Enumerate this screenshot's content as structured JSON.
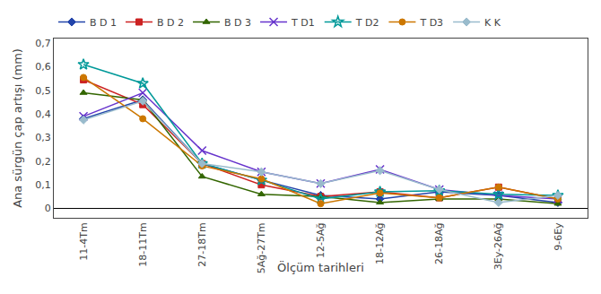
{
  "chart_data": {
    "type": "line",
    "xlabel": "Ölçüm tarihleri",
    "ylabel": "Ana sürgün çap artışı (mm)",
    "categories": [
      "11-4Tm",
      "18-11Tm",
      "27-18Tm",
      "5Ağ-27Tm",
      "12-5Ağ",
      "18-12Ağ",
      "26-18Ağ",
      "3Ey-26Ağ",
      "9-6Ey"
    ],
    "series": [
      {
        "name": "B D 1",
        "color": "#2244aa",
        "marker": "diamond",
        "values": [
          0.38,
          0.46,
          0.19,
          0.12,
          0.055,
          0.04,
          0.07,
          0.055,
          0.025
        ]
      },
      {
        "name": "B D 2",
        "color": "#cc2222",
        "marker": "square",
        "values": [
          0.545,
          0.44,
          0.19,
          0.1,
          0.05,
          0.07,
          0.045,
          0.09,
          0.04
        ]
      },
      {
        "name": "B D 3",
        "color": "#336600",
        "marker": "triangle-up",
        "values": [
          0.49,
          0.46,
          0.135,
          0.06,
          0.05,
          0.025,
          0.04,
          0.04,
          0.02
        ]
      },
      {
        "name": "T D1",
        "color": "#6633cc",
        "marker": "x",
        "values": [
          0.39,
          0.49,
          0.245,
          0.155,
          0.105,
          0.165,
          0.08,
          0.055,
          0.04
        ]
      },
      {
        "name": "T D2",
        "color": "#009999",
        "marker": "star",
        "values": [
          0.61,
          0.53,
          0.19,
          0.12,
          0.04,
          0.07,
          0.075,
          0.06,
          0.055
        ]
      },
      {
        "name": "T D3",
        "color": "#cc7700",
        "marker": "circle",
        "values": [
          0.555,
          0.38,
          0.18,
          0.125,
          0.02,
          0.065,
          0.045,
          0.09,
          0.04
        ]
      },
      {
        "name": "K K",
        "color": "#99bbcc",
        "marker": "diamond",
        "values": [
          0.375,
          0.455,
          0.19,
          0.155,
          0.105,
          0.16,
          0.08,
          0.025,
          0.055
        ]
      }
    ],
    "ylim": [
      -0.04,
      0.72
    ],
    "yticks": [
      0,
      {
        "value": 0.1,
        "label": "0,1"
      },
      {
        "value": 0.2,
        "label": "0,2"
      },
      {
        "value": 0.3,
        "label": "0,3"
      },
      {
        "value": 0.4,
        "label": "0,4"
      },
      {
        "value": 0.5,
        "label": "0,5"
      },
      {
        "value": 0.6,
        "label": "0,6"
      },
      {
        "value": 0.7,
        "label": "0,7"
      }
    ],
    "grid": false,
    "legend": "top"
  }
}
